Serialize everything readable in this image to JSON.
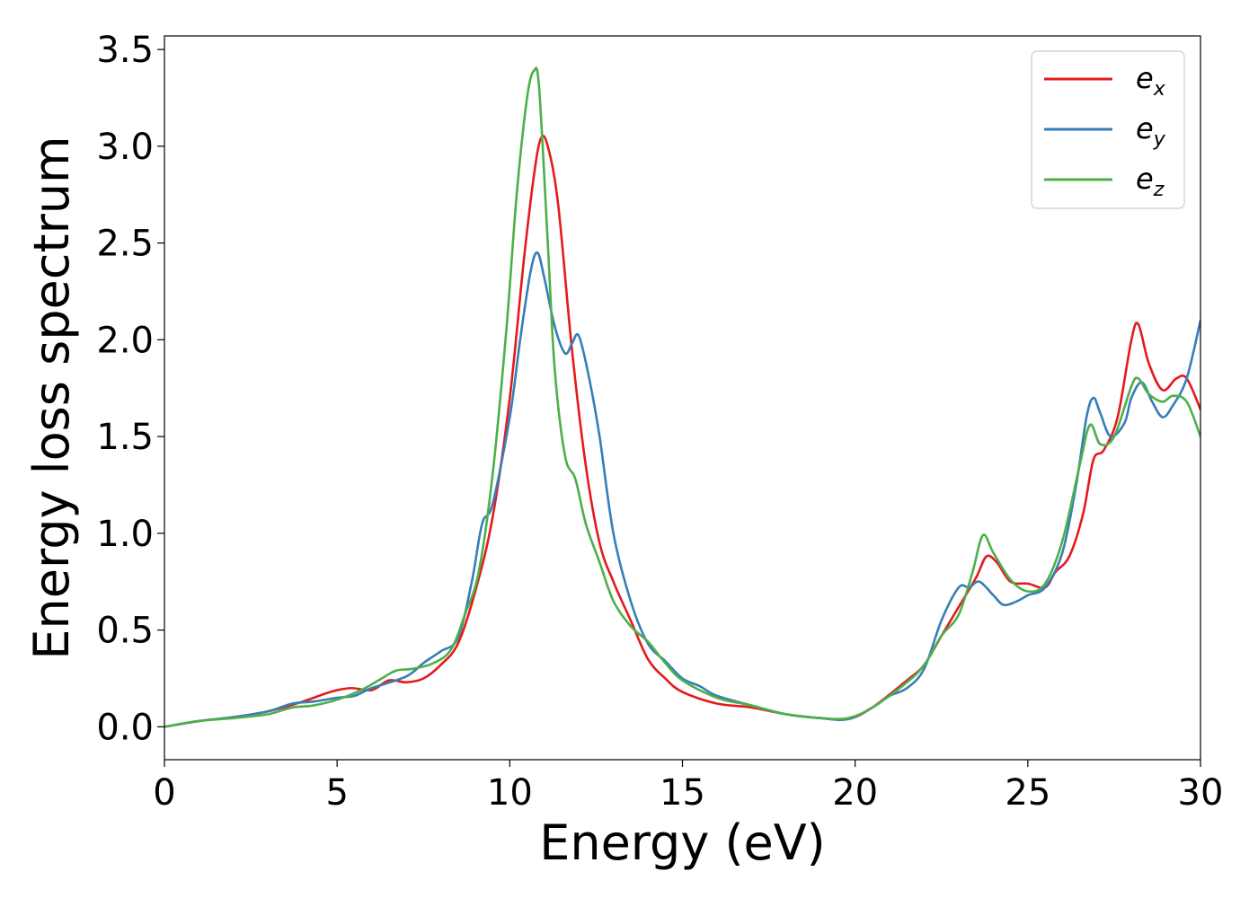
{
  "chart_data": {
    "type": "line",
    "title": "",
    "xlabel": "Energy (eV)",
    "ylabel": "Energy loss spectrum",
    "xlim": [
      0,
      30
    ],
    "ylim": [
      -0.17,
      3.57
    ],
    "xticks": [
      0,
      5,
      10,
      15,
      20,
      25,
      30
    ],
    "yticks": [
      0.0,
      0.5,
      1.0,
      1.5,
      2.0,
      2.5,
      3.0,
      3.5
    ],
    "xtick_labels": [
      "0",
      "5",
      "10",
      "15",
      "20",
      "25",
      "30"
    ],
    "ytick_labels": [
      "0.0",
      "0.5",
      "1.0",
      "1.5",
      "2.0",
      "2.5",
      "3.0",
      "3.5"
    ],
    "grid": false,
    "legend_position": "top-right",
    "series": [
      {
        "name": "e_x",
        "legend_base": "e",
        "legend_sub": "x",
        "color": "#e41a1c",
        "points": [
          [
            0,
            0
          ],
          [
            1,
            0.03
          ],
          [
            2,
            0.05
          ],
          [
            3,
            0.08
          ],
          [
            4,
            0.13
          ],
          [
            4.8,
            0.18
          ],
          [
            5.4,
            0.2
          ],
          [
            6,
            0.19
          ],
          [
            6.5,
            0.24
          ],
          [
            7,
            0.23
          ],
          [
            7.5,
            0.25
          ],
          [
            8,
            0.32
          ],
          [
            8.5,
            0.43
          ],
          [
            9,
            0.7
          ],
          [
            9.5,
            1.08
          ],
          [
            10,
            1.7
          ],
          [
            10.4,
            2.4
          ],
          [
            10.7,
            2.85
          ],
          [
            10.9,
            3.04
          ],
          [
            11.1,
            3.0
          ],
          [
            11.4,
            2.7
          ],
          [
            11.8,
            1.95
          ],
          [
            12.2,
            1.35
          ],
          [
            12.6,
            0.95
          ],
          [
            13,
            0.75
          ],
          [
            13.5,
            0.55
          ],
          [
            14,
            0.35
          ],
          [
            14.5,
            0.25
          ],
          [
            15,
            0.18
          ],
          [
            16,
            0.12
          ],
          [
            17,
            0.1
          ],
          [
            18,
            0.065
          ],
          [
            19,
            0.045
          ],
          [
            19.8,
            0.04
          ],
          [
            20.5,
            0.1
          ],
          [
            21.5,
            0.24
          ],
          [
            22,
            0.32
          ],
          [
            22.5,
            0.47
          ],
          [
            23,
            0.62
          ],
          [
            23.5,
            0.77
          ],
          [
            23.8,
            0.88
          ],
          [
            24.1,
            0.85
          ],
          [
            24.5,
            0.75
          ],
          [
            25,
            0.74
          ],
          [
            25.5,
            0.72
          ],
          [
            25.8,
            0.8
          ],
          [
            26.2,
            0.88
          ],
          [
            26.6,
            1.1
          ],
          [
            26.9,
            1.38
          ],
          [
            27.2,
            1.43
          ],
          [
            27.6,
            1.6
          ],
          [
            28,
            2.0
          ],
          [
            28.2,
            2.08
          ],
          [
            28.5,
            1.88
          ],
          [
            28.9,
            1.74
          ],
          [
            29.3,
            1.8
          ],
          [
            29.6,
            1.8
          ],
          [
            30,
            1.64
          ]
        ]
      },
      {
        "name": "e_y",
        "legend_base": "e",
        "legend_sub": "y",
        "color": "#377eb8",
        "points": [
          [
            0,
            0
          ],
          [
            1,
            0.03
          ],
          [
            2,
            0.05
          ],
          [
            3,
            0.08
          ],
          [
            3.7,
            0.12
          ],
          [
            4.3,
            0.13
          ],
          [
            5,
            0.15
          ],
          [
            5.5,
            0.16
          ],
          [
            6,
            0.2
          ],
          [
            7,
            0.26
          ],
          [
            7.5,
            0.33
          ],
          [
            8,
            0.39
          ],
          [
            8.5,
            0.46
          ],
          [
            8.9,
            0.75
          ],
          [
            9.2,
            1.05
          ],
          [
            9.5,
            1.15
          ],
          [
            10,
            1.6
          ],
          [
            10.3,
            2.0
          ],
          [
            10.6,
            2.35
          ],
          [
            10.8,
            2.45
          ],
          [
            11,
            2.32
          ],
          [
            11.3,
            2.07
          ],
          [
            11.6,
            1.93
          ],
          [
            11.8,
            1.98
          ],
          [
            12,
            2.02
          ],
          [
            12.3,
            1.8
          ],
          [
            12.6,
            1.5
          ],
          [
            13,
            1.0
          ],
          [
            13.5,
            0.65
          ],
          [
            14,
            0.43
          ],
          [
            14.5,
            0.34
          ],
          [
            15,
            0.25
          ],
          [
            15.5,
            0.21
          ],
          [
            16,
            0.16
          ],
          [
            17,
            0.11
          ],
          [
            18,
            0.065
          ],
          [
            19,
            0.045
          ],
          [
            19.8,
            0.04
          ],
          [
            20.5,
            0.1
          ],
          [
            21,
            0.16
          ],
          [
            21.5,
            0.2
          ],
          [
            22,
            0.3
          ],
          [
            22.5,
            0.55
          ],
          [
            23,
            0.72
          ],
          [
            23.3,
            0.72
          ],
          [
            23.6,
            0.75
          ],
          [
            24,
            0.68
          ],
          [
            24.3,
            0.63
          ],
          [
            24.7,
            0.65
          ],
          [
            25,
            0.68
          ],
          [
            25.5,
            0.72
          ],
          [
            26,
            0.9
          ],
          [
            26.4,
            1.25
          ],
          [
            26.7,
            1.6
          ],
          [
            26.9,
            1.7
          ],
          [
            27.1,
            1.62
          ],
          [
            27.4,
            1.5
          ],
          [
            27.8,
            1.57
          ],
          [
            28,
            1.7
          ],
          [
            28.3,
            1.78
          ],
          [
            28.6,
            1.68
          ],
          [
            28.9,
            1.6
          ],
          [
            29.2,
            1.66
          ],
          [
            29.6,
            1.8
          ],
          [
            30,
            2.1
          ]
        ]
      },
      {
        "name": "e_z",
        "legend_base": "e",
        "legend_sub": "z",
        "color": "#4daf4a",
        "points": [
          [
            0,
            0
          ],
          [
            1,
            0.03
          ],
          [
            2,
            0.045
          ],
          [
            3,
            0.065
          ],
          [
            3.7,
            0.1
          ],
          [
            4.3,
            0.11
          ],
          [
            5,
            0.14
          ],
          [
            5.7,
            0.19
          ],
          [
            6.2,
            0.24
          ],
          [
            6.7,
            0.29
          ],
          [
            7.2,
            0.3
          ],
          [
            7.8,
            0.33
          ],
          [
            8.3,
            0.4
          ],
          [
            8.7,
            0.58
          ],
          [
            9.1,
            0.8
          ],
          [
            9.5,
            1.3
          ],
          [
            9.9,
            2.05
          ],
          [
            10.2,
            2.75
          ],
          [
            10.5,
            3.25
          ],
          [
            10.7,
            3.39
          ],
          [
            10.85,
            3.3
          ],
          [
            11.1,
            2.5
          ],
          [
            11.3,
            1.85
          ],
          [
            11.6,
            1.4
          ],
          [
            11.9,
            1.28
          ],
          [
            12.2,
            1.05
          ],
          [
            12.6,
            0.85
          ],
          [
            13,
            0.65
          ],
          [
            13.5,
            0.52
          ],
          [
            14,
            0.44
          ],
          [
            14.5,
            0.33
          ],
          [
            15,
            0.24
          ],
          [
            16,
            0.15
          ],
          [
            17,
            0.11
          ],
          [
            18,
            0.065
          ],
          [
            19,
            0.045
          ],
          [
            19.8,
            0.045
          ],
          [
            20.5,
            0.1
          ],
          [
            21.5,
            0.23
          ],
          [
            22,
            0.32
          ],
          [
            22.5,
            0.47
          ],
          [
            23,
            0.58
          ],
          [
            23.4,
            0.8
          ],
          [
            23.7,
            0.99
          ],
          [
            24,
            0.9
          ],
          [
            24.5,
            0.76
          ],
          [
            25,
            0.7
          ],
          [
            25.5,
            0.74
          ],
          [
            26,
            0.96
          ],
          [
            26.5,
            1.35
          ],
          [
            26.8,
            1.56
          ],
          [
            27.1,
            1.46
          ],
          [
            27.5,
            1.5
          ],
          [
            28,
            1.76
          ],
          [
            28.2,
            1.8
          ],
          [
            28.5,
            1.72
          ],
          [
            28.9,
            1.68
          ],
          [
            29.2,
            1.71
          ],
          [
            29.6,
            1.68
          ],
          [
            30,
            1.5
          ]
        ]
      }
    ]
  }
}
